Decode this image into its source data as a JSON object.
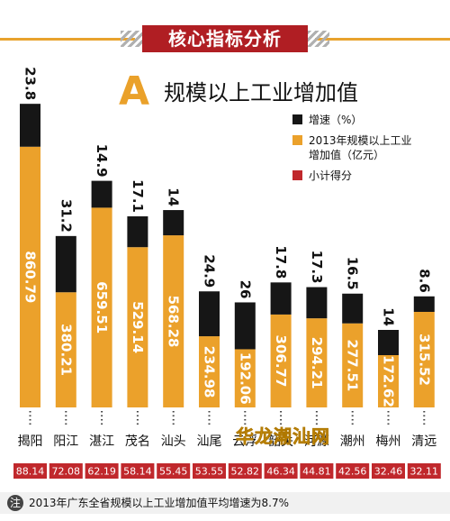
{
  "header": {
    "title": "核心指标分析"
  },
  "subtitle": {
    "letter": "A",
    "text": "规模以上工业增加值"
  },
  "legend": {
    "growth": "增速（%）",
    "value": "2013年规模以上工业增加值（亿元）",
    "score": "小计得分"
  },
  "footnote": {
    "icon": "注",
    "text": "2013年广东全省规模以上工业增加值平均增速为8.7%"
  },
  "watermark": "华龙潮汕网",
  "colors": {
    "growth": "#161616",
    "value": "#eba12b",
    "score": "#c0282c"
  },
  "chart_data": {
    "type": "bar",
    "categories": [
      "揭阳",
      "阳江",
      "湛江",
      "茂名",
      "汕头",
      "汕尾",
      "云浮",
      "韶关",
      "河源",
      "潮州",
      "梅州",
      "清远"
    ],
    "series": [
      {
        "name": "增速（%）",
        "values": [
          23.8,
          31.2,
          14.9,
          17.1,
          14,
          24.9,
          26,
          17.8,
          17.3,
          16.5,
          14,
          8.6
        ]
      },
      {
        "name": "2013年规模以上工业增加值（亿元）",
        "values": [
          860.79,
          380.21,
          659.51,
          529.14,
          568.28,
          234.98,
          192.06,
          306.77,
          294.21,
          277.51,
          172.62,
          315.52
        ]
      },
      {
        "name": "小计得分",
        "values": [
          88.14,
          72.08,
          62.19,
          58.14,
          55.45,
          53.55,
          52.82,
          46.34,
          44.81,
          42.56,
          32.46,
          32.11
        ]
      }
    ]
  }
}
